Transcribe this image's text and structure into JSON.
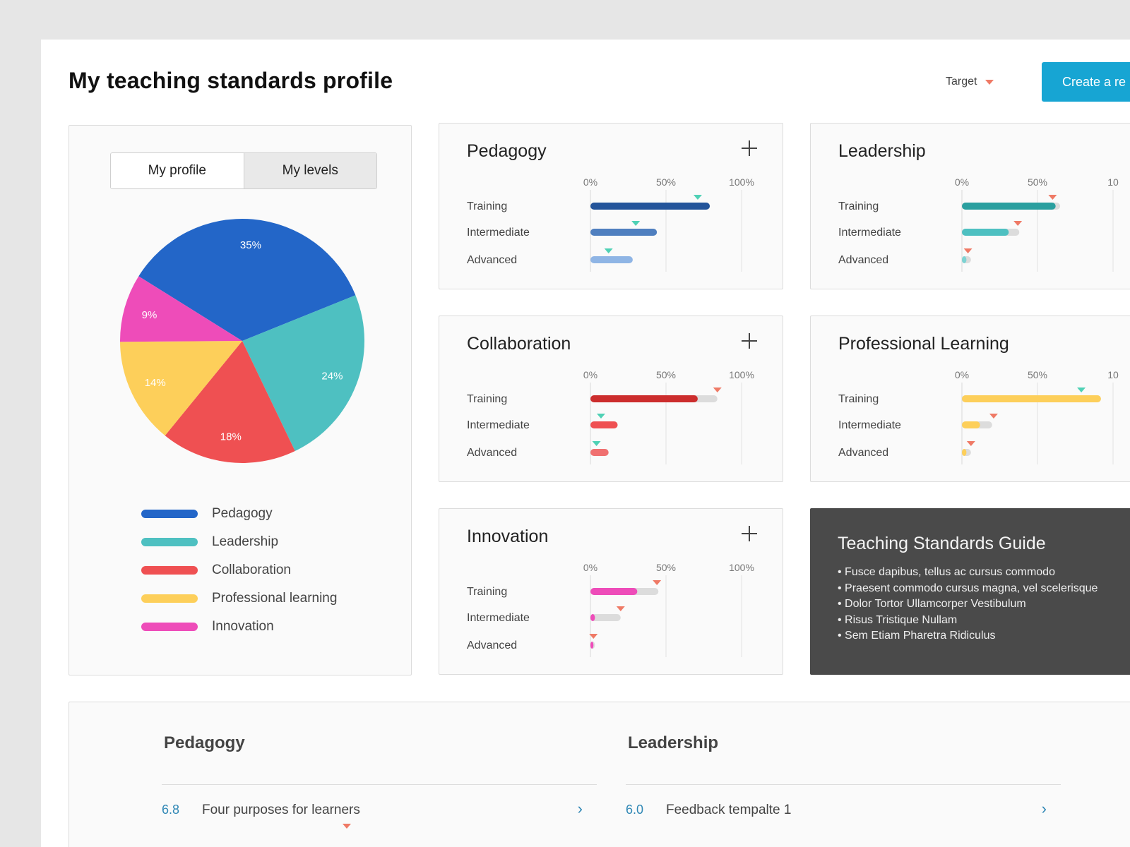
{
  "header": {
    "title": "My teaching standards profile",
    "target_label": "Target",
    "create_button_label": "Create a re"
  },
  "profile": {
    "tabs": [
      {
        "label": "My profile",
        "active": true
      },
      {
        "label": "My levels",
        "active": false
      }
    ],
    "legend": [
      {
        "label": "Pedagogy",
        "color": "#2366c8"
      },
      {
        "label": "Leadership",
        "color": "#4ec0c1"
      },
      {
        "label": "Collaboration",
        "color": "#ef5052"
      },
      {
        "label": "Professional learning",
        "color": "#fdcf5a"
      },
      {
        "label": "Innovation",
        "color": "#ee4cb9"
      }
    ]
  },
  "chart_data": [
    {
      "type": "pie",
      "title": "",
      "slices": [
        {
          "label": "35%",
          "value": 35,
          "color": "#2366c8"
        },
        {
          "label": "24%",
          "value": 24,
          "color": "#4ec0c1"
        },
        {
          "label": "18%",
          "value": 18,
          "color": "#ef5052"
        },
        {
          "label": "14%",
          "value": 14,
          "color": "#fdcf5a"
        },
        {
          "label": "9%",
          "value": 9,
          "color": "#ee4cb9"
        }
      ]
    },
    {
      "type": "bar",
      "orientation": "horizontal",
      "title": "Pedagogy",
      "ticks": [
        "0%",
        "50%",
        "100%"
      ],
      "xlim": [
        0,
        100
      ],
      "categories": [
        "Training",
        "Intermediate",
        "Advanced"
      ],
      "values": [
        79,
        44,
        28
      ],
      "targets": [
        71,
        30,
        12
      ],
      "target_color": "#4fd1b5",
      "colors": [
        "#23549a",
        "#4f7fbf",
        "#8fb5e5"
      ]
    },
    {
      "type": "bar",
      "orientation": "horizontal",
      "title": "Leadership",
      "ticks": [
        "0%",
        "50%",
        "10"
      ],
      "xlim": [
        0,
        100
      ],
      "categories": [
        "Training",
        "Intermediate",
        "Advanced"
      ],
      "values": [
        62,
        31,
        3
      ],
      "track": [
        65,
        38,
        6
      ],
      "targets": [
        60,
        37,
        4
      ],
      "target_color": "#ef7a66",
      "colors": [
        "#2a9f9f",
        "#4ec0c1",
        "#7dd3d3"
      ]
    },
    {
      "type": "bar",
      "orientation": "horizontal",
      "title": "Collaboration",
      "ticks": [
        "0%",
        "50%",
        "100%"
      ],
      "xlim": [
        0,
        100
      ],
      "categories": [
        "Training",
        "Intermediate",
        "Advanced"
      ],
      "values": [
        71,
        18,
        12
      ],
      "track": [
        84,
        18,
        12
      ],
      "targets": [
        84,
        7,
        4
      ],
      "target_color_by_row": [
        "#ef7a66",
        "#4fd1b5",
        "#4fd1b5"
      ],
      "colors": [
        "#cc2d2d",
        "#ef5052",
        "#f07070"
      ]
    },
    {
      "type": "bar",
      "orientation": "horizontal",
      "title": "Professional Learning",
      "ticks": [
        "0%",
        "50%",
        "10"
      ],
      "xlim": [
        0,
        100
      ],
      "categories": [
        "Training",
        "Intermediate",
        "Advanced"
      ],
      "values": [
        92,
        12,
        3
      ],
      "track": [
        92,
        20,
        6
      ],
      "targets": [
        79,
        21,
        6
      ],
      "target_color_by_row": [
        "#4fd1b5",
        "#ef7a66",
        "#ef7a66"
      ],
      "colors": [
        "#fdcf5a",
        "#fdcf5a",
        "#fdcf5a"
      ]
    },
    {
      "type": "bar",
      "orientation": "horizontal",
      "title": "Innovation",
      "ticks": [
        "0%",
        "50%",
        "100%"
      ],
      "xlim": [
        0,
        100
      ],
      "categories": [
        "Training",
        "Intermediate",
        "Advanced"
      ],
      "values": [
        31,
        3,
        2
      ],
      "track": [
        45,
        20,
        3
      ],
      "targets": [
        44,
        20,
        2
      ],
      "target_color": "#ef7a66",
      "colors": [
        "#ee4cb9",
        "#ee4cb9",
        "#ee4cb9"
      ]
    }
  ],
  "guide": {
    "title": "Teaching Standards Guide",
    "items": [
      "• Fusce dapibus, tellus ac cursus commodo",
      "• Praesent commodo cursus magna, vel scelerisque",
      "• Dolor Tortor Ullamcorper Vestibulum",
      "• Risus Tristique Nullam",
      "• Sem Etiam Pharetra Ridiculus"
    ]
  },
  "bottom": {
    "sections": [
      {
        "title": "Pedagogy",
        "row": {
          "number": "6.8",
          "text": "Four purposes for learners"
        }
      },
      {
        "title": "Leadership",
        "row": {
          "number": "6.0",
          "text": "Feedback tempalte 1"
        }
      }
    ]
  }
}
